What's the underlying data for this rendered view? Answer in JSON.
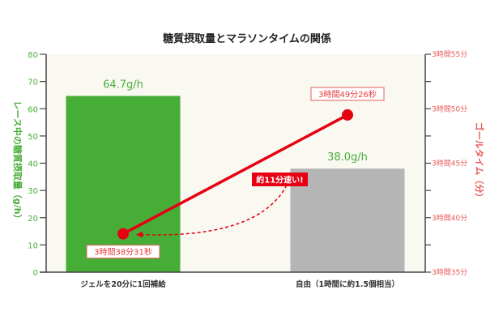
{
  "chart_data": {
    "type": "bar+line",
    "title": "糖質摂取量とマラソンタイムの関係",
    "categories": [
      "ジェルを20分に1回補給",
      "自由（1時間に約1.5個相当）"
    ],
    "bar_series": {
      "values": [
        64.7,
        38.0
      ],
      "value_labels": [
        "64.7g/h",
        "38.0g/h"
      ],
      "colors": [
        "#46ae37",
        "#b5b5b5"
      ]
    },
    "line_series": {
      "values_min": [
        218.52,
        229.43
      ],
      "value_labels": [
        "3時間38分31秒",
        "3時間49分26秒"
      ],
      "color": "#e60012"
    },
    "annotation": "約11分速い!",
    "y_left": {
      "label": "レース中の糖質摂取量（g/h）",
      "range": [
        0,
        80
      ],
      "ticks": [
        "0",
        "10",
        "20",
        "30",
        "40",
        "50",
        "60",
        "70",
        "80"
      ]
    },
    "y_right": {
      "label": "ゴールタイム（分）",
      "range_min": [
        215,
        235
      ],
      "ticks": [
        "3時間35分",
        "3時間40分",
        "3時間45分",
        "3時間50分",
        "3時間55分"
      ]
    },
    "grid": false,
    "background": "#f9f8f1"
  }
}
